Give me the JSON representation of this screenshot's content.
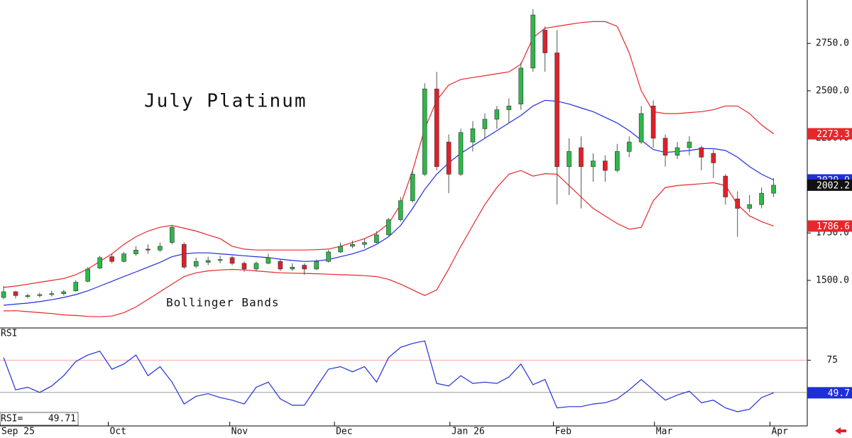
{
  "chart_data": [
    {
      "type": "candlestick",
      "title": "July Platinum",
      "annotation": "Bollinger Bands",
      "x": [
        0,
        1,
        2,
        3,
        4,
        5,
        6,
        7,
        8,
        9,
        10,
        11,
        12,
        13,
        14,
        15,
        16,
        17,
        18,
        19,
        20,
        21,
        22,
        23,
        24,
        25,
        26,
        27,
        28,
        29,
        30,
        31,
        32,
        33,
        34,
        35,
        36,
        37,
        38,
        39,
        40,
        41,
        42,
        43,
        44,
        45,
        46,
        47,
        48,
        49,
        50,
        51,
        52,
        53,
        54,
        55,
        56,
        57,
        58,
        59,
        60,
        61,
        62,
        63,
        64
      ],
      "xlim": [
        -0.3,
        66.8
      ],
      "xticks": [
        {
          "value": -0.3,
          "label": "Sep 25"
        },
        {
          "value": 8.7,
          "label": "Oct"
        },
        {
          "value": 18.8,
          "label": "Nov"
        },
        {
          "value": 27.5,
          "label": "Dec"
        },
        {
          "value": 37.1,
          "label": "Jan 26"
        },
        {
          "value": 45.7,
          "label": "Feb"
        },
        {
          "value": 54.1,
          "label": "Mar"
        },
        {
          "value": 63.7,
          "label": "Apr"
        }
      ],
      "ylim": [
        1249,
        2979
      ],
      "yticks": [
        {
          "value": 1500,
          "label": "1500.0"
        },
        {
          "value": 1750,
          "label": "1750.0"
        },
        {
          "value": 2000,
          "label": "2000.0"
        },
        {
          "value": 2250,
          "label": "2250.0"
        },
        {
          "value": 2500,
          "label": "2500.0"
        },
        {
          "value": 2750,
          "label": "2750.0"
        }
      ],
      "up_color": "#2db84a",
      "down_color": "#e0202a",
      "open": [
        1410,
        1440,
        1415,
        1420,
        1425,
        1430,
        1445,
        1495,
        1565,
        1625,
        1600,
        1640,
        1665,
        1660,
        1700,
        1690,
        1575,
        1595,
        1605,
        1620,
        1590,
        1560,
        1590,
        1600,
        1560,
        1580,
        1560,
        1600,
        1650,
        1680,
        1690,
        1700,
        1740,
        1820,
        1920,
        2060,
        2510,
        2230,
        2060,
        2230,
        2300,
        2350,
        2400,
        2430,
        2620,
        2820,
        2700,
        2100,
        2200,
        2100,
        2130,
        2080,
        2180,
        2230,
        2420,
        2250,
        2160,
        2200,
        2200,
        2170,
        2050,
        1930,
        1880,
        1900,
        1960
      ],
      "high": [
        1470,
        1445,
        1430,
        1435,
        1445,
        1450,
        1500,
        1570,
        1630,
        1640,
        1650,
        1680,
        1690,
        1700,
        1790,
        1700,
        1620,
        1625,
        1630,
        1630,
        1600,
        1600,
        1640,
        1610,
        1590,
        1590,
        1610,
        1660,
        1700,
        1710,
        1720,
        1760,
        1830,
        1940,
        2080,
        2540,
        2600,
        2270,
        2300,
        2340,
        2380,
        2420,
        2460,
        2650,
        2930,
        2840,
        2820,
        2250,
        2260,
        2170,
        2160,
        2220,
        2260,
        2420,
        2450,
        2270,
        2230,
        2260,
        2210,
        2190,
        2060,
        1970,
        1950,
        1990,
        2040
      ],
      "low": [
        1400,
        1405,
        1405,
        1410,
        1415,
        1420,
        1440,
        1490,
        1560,
        1590,
        1595,
        1630,
        1640,
        1650,
        1690,
        1560,
        1565,
        1580,
        1590,
        1580,
        1545,
        1550,
        1585,
        1550,
        1550,
        1530,
        1555,
        1595,
        1645,
        1670,
        1670,
        1695,
        1735,
        1810,
        1910,
        2050,
        2080,
        1960,
        2050,
        2180,
        2250,
        2300,
        2330,
        2400,
        2600,
        2600,
        1900,
        1950,
        1880,
        2020,
        2020,
        2070,
        2150,
        2220,
        2200,
        2100,
        2140,
        2160,
        2080,
        2040,
        1900,
        1730,
        1860,
        1880,
        1940
      ],
      "close": [
        1440,
        1420,
        1420,
        1425,
        1430,
        1440,
        1490,
        1560,
        1620,
        1600,
        1640,
        1660,
        1660,
        1680,
        1780,
        1570,
        1600,
        1605,
        1610,
        1590,
        1560,
        1590,
        1620,
        1560,
        1570,
        1560,
        1600,
        1650,
        1680,
        1690,
        1700,
        1740,
        1820,
        1920,
        2060,
        2510,
        2100,
        2060,
        2280,
        2300,
        2350,
        2400,
        2420,
        2620,
        2900,
        2700,
        2100,
        2180,
        2100,
        2130,
        2080,
        2180,
        2230,
        2380,
        2250,
        2160,
        2200,
        2230,
        2150,
        2120,
        1940,
        1880,
        1900,
        1960,
        2002.2
      ],
      "series": [
        {
          "color": "#e8262b",
          "values": [
            1463,
            1470,
            1480,
            1490,
            1500,
            1510,
            1530,
            1560,
            1600,
            1640,
            1690,
            1730,
            1760,
            1780,
            1790,
            1775,
            1760,
            1740,
            1720,
            1680,
            1665,
            1660,
            1660,
            1660,
            1660,
            1660,
            1662,
            1665,
            1680,
            1700,
            1720,
            1750,
            1800,
            1900,
            2080,
            2300,
            2450,
            2530,
            2560,
            2570,
            2580,
            2590,
            2600,
            2640,
            2780,
            2830,
            2840,
            2850,
            2860,
            2865,
            2865,
            2840,
            2700,
            2500,
            2390,
            2380,
            2380,
            2385,
            2390,
            2400,
            2420,
            2420,
            2380,
            2320,
            2273.3
          ]
        },
        {
          "color": "#1f2fd8",
          "values": [
            1369,
            1375,
            1380,
            1388,
            1398,
            1410,
            1425,
            1445,
            1470,
            1495,
            1520,
            1545,
            1570,
            1595,
            1625,
            1640,
            1645,
            1645,
            1640,
            1635,
            1630,
            1625,
            1620,
            1612,
            1605,
            1600,
            1602,
            1610,
            1625,
            1640,
            1660,
            1690,
            1730,
            1790,
            1880,
            1980,
            2060,
            2120,
            2170,
            2210,
            2250,
            2290,
            2330,
            2370,
            2420,
            2450,
            2445,
            2430,
            2410,
            2390,
            2360,
            2330,
            2290,
            2240,
            2190,
            2175,
            2180,
            2185,
            2195,
            2195,
            2185,
            2150,
            2100,
            2060,
            2029.9
          ]
        },
        {
          "color": "#e8262b",
          "values": [
            1339,
            1340,
            1335,
            1330,
            1325,
            1318,
            1315,
            1310,
            1308,
            1312,
            1330,
            1360,
            1400,
            1440,
            1480,
            1520,
            1540,
            1550,
            1555,
            1558,
            1555,
            1550,
            1545,
            1540,
            1538,
            1537,
            1535,
            1533,
            1530,
            1528,
            1525,
            1520,
            1505,
            1480,
            1450,
            1420,
            1450,
            1560,
            1680,
            1790,
            1900,
            1990,
            2060,
            2080,
            2050,
            2063,
            2060,
            2000,
            1940,
            1880,
            1840,
            1800,
            1770,
            1780,
            1920,
            1990,
            2000,
            2005,
            2010,
            2015,
            2000,
            1900,
            1840,
            1810,
            1786.6
          ]
        }
      ],
      "close_label_color": "#111"
    },
    {
      "type": "line",
      "title": "RSI",
      "readout_label": "RSI=",
      "ylim": [
        24,
        100
      ],
      "yticks": [
        75
      ],
      "reference_lines": [
        {
          "value": 75,
          "color": "#f2a7a7"
        },
        {
          "value": 50,
          "color": "#999999"
        }
      ],
      "series": [
        {
          "color": "#1f2fd8",
          "values": [
            77,
            52,
            54,
            50,
            55,
            63,
            74,
            79,
            82,
            68,
            72,
            79,
            63,
            70,
            58,
            41,
            47,
            49,
            46,
            44,
            41,
            54,
            58,
            45,
            40,
            40,
            54,
            68,
            70,
            66,
            70,
            58,
            77,
            85,
            88,
            90,
            57,
            55,
            63,
            57,
            58,
            57,
            62,
            72,
            56,
            60,
            38,
            39,
            39,
            41,
            42,
            45,
            52,
            60,
            52,
            44,
            48,
            51,
            42,
            44,
            38,
            35,
            37,
            46,
            49.71
          ],
          "value_labels": {
            "64": "49.7"
          }
        }
      ]
    }
  ]
}
